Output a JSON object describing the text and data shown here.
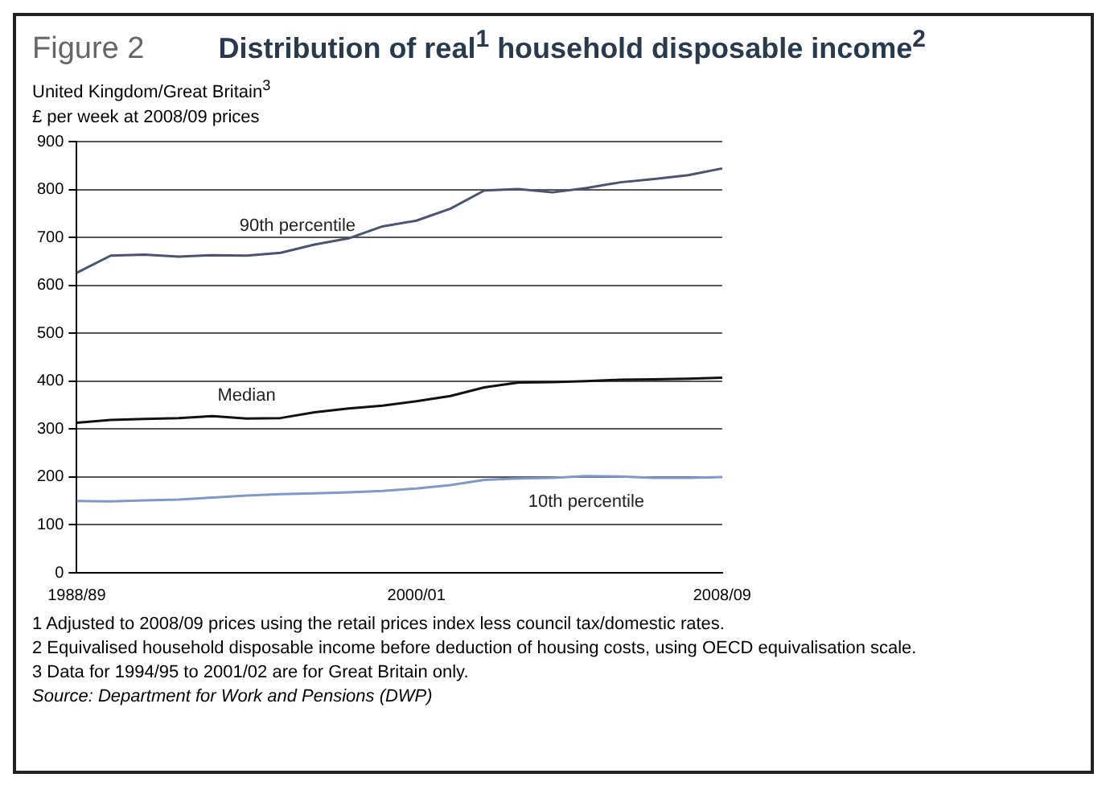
{
  "chart_data": {
    "type": "line",
    "title": "Figure 2",
    "subtitle": "Distribution of real$^{1}$ household disposable income$^{2}$",
    "ylabel": "£ per week at 2008/09 prices",
    "categories": [
      "1988/89",
      null,
      null,
      null,
      null,
      null,
      null,
      null,
      null,
      null,
      "2000/01",
      null,
      null,
      null,
      null,
      null,
      null,
      null,
      null,
      "2008/09"
    ],
    "series": [
      {
        "name": "90th percentile",
        "color": "#4a5470",
        "values": [
          626,
          662,
          664,
          660,
          663,
          662,
          668,
          685,
          698,
          723,
          735,
          760,
          798,
          801,
          794,
          803,
          815,
          822,
          830,
          844
        ]
      },
      {
        "name": "Median",
        "color": "#111111",
        "values": [
          313,
          319,
          321,
          323,
          327,
          322,
          323,
          335,
          343,
          349,
          358,
          369,
          387,
          397,
          398,
          400,
          403,
          404,
          405,
          407
        ]
      },
      {
        "name": "10th percentile",
        "color": "#7f98c8",
        "values": [
          150,
          149,
          151,
          153,
          157,
          161,
          164,
          166,
          168,
          171,
          176,
          183,
          194,
          197,
          198,
          202,
          201,
          198,
          198,
          200
        ]
      }
    ],
    "ylim": [
      0,
      900
    ],
    "yticks": [
      0,
      100,
      200,
      300,
      400,
      500,
      600,
      700,
      800,
      900
    ],
    "grid": "y",
    "legend": false,
    "marker": "none",
    "line_style": "solid",
    "annotations": [
      "United Kingdom/Great Britain$^{3}$",
      "1 Adjusted to 2008/09 prices using the retail prices index less council tax/domestic rates.",
      "2 Equivalised household disposable income before deduction of housing costs, using OECD equivalisation scale.",
      "3 Data for 1994/95 to 2001/02 are for Great Britain only.",
      "Source: Department for Work and Pensions (DWP)"
    ]
  }
}
